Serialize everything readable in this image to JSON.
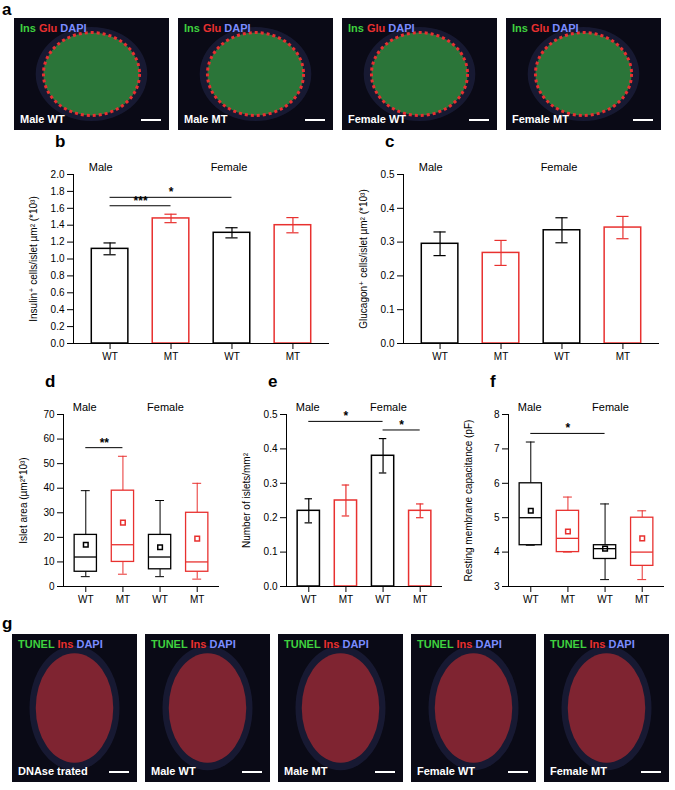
{
  "image_panels": [
    {
      "panel": "a",
      "channels": [
        {
          "name": "Ins",
          "color": "#3fd13f"
        },
        {
          "name": "Glu",
          "color": "#e83030"
        },
        {
          "name": "DAPI",
          "color": "#7a8cff"
        }
      ],
      "images": [
        "Male WT",
        "Male MT",
        "Female WT",
        "Female MT"
      ]
    },
    {
      "panel": "g",
      "channels": [
        {
          "name": "TUNEL",
          "color": "#3fd13f"
        },
        {
          "name": "Ins",
          "color": "#e83030"
        },
        {
          "name": "DAPI",
          "color": "#7a8cff"
        }
      ],
      "images": [
        "DNAse trated",
        "Male WT",
        "Male MT",
        "Female WT",
        "Female MT"
      ]
    }
  ],
  "chart_data": [
    {
      "panel": "b",
      "type": "bar",
      "y_label": "Insulin⁺ cells/islet µm² (*10³)",
      "categories": [
        "WT",
        "MT",
        "WT",
        "MT"
      ],
      "values": [
        1.12,
        1.48,
        1.31,
        1.4
      ],
      "errors": [
        0.07,
        0.05,
        0.06,
        0.09
      ],
      "colors": [
        "#000000",
        "#e8312f",
        "#000000",
        "#e8312f"
      ],
      "groups": [
        {
          "label": "Male",
          "members": [
            0,
            1
          ]
        },
        {
          "label": "Female",
          "members": [
            2,
            3
          ]
        }
      ],
      "significance": [
        {
          "between": [
            0,
            1
          ],
          "label": "***"
        },
        {
          "between": [
            0,
            2
          ],
          "label": "*"
        }
      ],
      "ylim": [
        0,
        2
      ],
      "yticks": [
        {
          "value": 0,
          "label": "0.0"
        },
        0.2,
        0.4,
        0.6,
        0.8,
        {
          "value": 1,
          "label": "1.0"
        },
        1.2,
        1.4,
        1.6,
        1.8,
        {
          "value": 2,
          "label": "2.0"
        }
      ]
    },
    {
      "panel": "c",
      "type": "bar",
      "y_label": "Glucagon⁺ cells/islet µm² (*10³)",
      "categories": [
        "WT",
        "MT",
        "WT",
        "MT"
      ],
      "values": [
        0.295,
        0.268,
        0.335,
        0.343
      ],
      "errors": [
        0.035,
        0.037,
        0.037,
        0.033
      ],
      "colors": [
        "#000000",
        "#e8312f",
        "#000000",
        "#e8312f"
      ],
      "groups": [
        {
          "label": "Male",
          "members": [
            0,
            1
          ]
        },
        {
          "label": "Female",
          "members": [
            2,
            3
          ]
        }
      ],
      "significance": [],
      "ylim": [
        0,
        0.5
      ],
      "yticks": [
        {
          "value": 0,
          "label": "0.0"
        },
        0.1,
        0.2,
        0.3,
        0.4,
        0.5
      ]
    },
    {
      "panel": "d",
      "type": "box",
      "y_label": "Islet area (µm²*10³)",
      "categories": [
        "WT",
        "MT",
        "WT",
        "MT"
      ],
      "boxes": [
        {
          "min": 4,
          "q1": 6,
          "median": 12,
          "q3": 21,
          "max": 39,
          "mean": 17
        },
        {
          "min": 5,
          "q1": 10,
          "median": 17,
          "q3": 39,
          "max": 53,
          "mean": 26
        },
        {
          "min": 4,
          "q1": 7,
          "median": 12,
          "q3": 21,
          "max": 35,
          "mean": 16
        },
        {
          "min": 3,
          "q1": 6,
          "median": 10,
          "q3": 30,
          "max": 42,
          "mean": 19.5
        }
      ],
      "colors": [
        "#000000",
        "#e8312f",
        "#000000",
        "#e8312f"
      ],
      "groups": [
        {
          "label": "Male",
          "members": [
            0,
            1
          ]
        },
        {
          "label": "Female",
          "members": [
            2,
            3
          ]
        }
      ],
      "significance": [
        {
          "between": [
            0,
            1
          ],
          "label": "**"
        }
      ],
      "ylim": [
        0,
        70
      ],
      "yticks": [
        0,
        10,
        20,
        30,
        40,
        50,
        60,
        70
      ]
    },
    {
      "panel": "e",
      "type": "bar",
      "y_label": "Number of islets/mm²",
      "categories": [
        "WT",
        "MT",
        "WT",
        "MT"
      ],
      "values": [
        0.22,
        0.25,
        0.38,
        0.22
      ],
      "errors": [
        0.035,
        0.045,
        0.05,
        0.02
      ],
      "colors": [
        "#000000",
        "#e8312f",
        "#000000",
        "#e8312f"
      ],
      "groups": [
        {
          "label": "Male",
          "members": [
            0,
            1
          ]
        },
        {
          "label": "Female",
          "members": [
            2,
            3
          ]
        }
      ],
      "significance": [
        {
          "between": [
            2,
            3
          ],
          "label": "*"
        },
        {
          "between": [
            0,
            2
          ],
          "label": "*"
        }
      ],
      "ylim": [
        0,
        0.5
      ],
      "yticks": [
        {
          "value": 0,
          "label": "0.0"
        },
        0.1,
        0.2,
        0.3,
        0.4,
        0.5
      ]
    },
    {
      "panel": "f",
      "type": "box",
      "y_label": "Resting membrane capacitance (pF)",
      "categories": [
        "WT",
        "MT",
        "WT",
        "MT"
      ],
      "boxes": [
        {
          "min": 4.2,
          "q1": 4.2,
          "median": 5.0,
          "q3": 6.0,
          "max": 7.2,
          "mean": 5.2
        },
        {
          "min": 4.0,
          "q1": 4.0,
          "median": 4.4,
          "q3": 5.2,
          "max": 5.6,
          "mean": 4.6
        },
        {
          "min": 3.2,
          "q1": 3.8,
          "median": 4.1,
          "q3": 4.2,
          "max": 5.4,
          "mean": 4.1
        },
        {
          "min": 3.2,
          "q1": 3.6,
          "median": 4.0,
          "q3": 5.0,
          "max": 5.2,
          "mean": 4.4
        }
      ],
      "colors": [
        "#000000",
        "#e8312f",
        "#000000",
        "#e8312f"
      ],
      "groups": [
        {
          "label": "Male",
          "members": [
            0,
            1
          ]
        },
        {
          "label": "Female",
          "members": [
            2,
            3
          ]
        }
      ],
      "significance": [
        {
          "between": [
            0,
            2
          ],
          "label": "*"
        }
      ],
      "ylim": [
        3,
        8
      ],
      "yticks": [
        3,
        4,
        5,
        6,
        7,
        8
      ]
    }
  ]
}
